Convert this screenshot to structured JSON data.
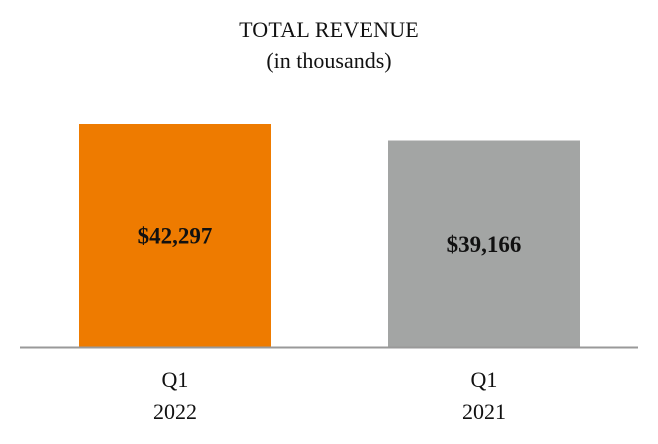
{
  "chart_data": {
    "type": "bar",
    "title": "TOTAL REVENUE",
    "subtitle": "(in thousands)",
    "categories": [
      [
        "Q1",
        "2022"
      ],
      [
        "Q1",
        "2021"
      ]
    ],
    "values": [
      42297,
      39166
    ],
    "data_labels": [
      "$42,297",
      "$39,166"
    ],
    "colors": [
      "#ee7b00",
      "#a3a5a4"
    ],
    "axis_color": "#999999",
    "xlabel": "",
    "ylabel": "",
    "ylim": [
      0,
      42297
    ],
    "grid": false,
    "legend": "none"
  }
}
